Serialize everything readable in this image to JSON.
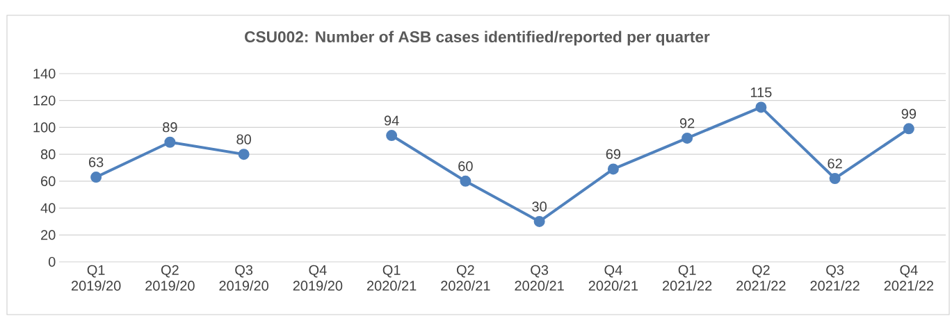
{
  "chart_data": {
    "type": "line",
    "title": "CSU002: Number of ASB cases identified/reported per quarter",
    "categories": [
      "Q1 2019/20",
      "Q2 2019/20",
      "Q3 2019/20",
      "Q4 2019/20",
      "Q1 2020/21",
      "Q2 2020/21",
      "Q3 2020/21",
      "Q4 2020/21",
      "Q1 2021/22",
      "Q2 2021/22",
      "Q3 2021/22",
      "Q4 2021/22"
    ],
    "values": [
      63,
      89,
      80,
      null,
      94,
      60,
      30,
      69,
      92,
      115,
      62,
      99
    ],
    "color": "#4f81bd",
    "ylim": [
      0,
      140
    ],
    "yticks": [
      0,
      20,
      40,
      60,
      80,
      100,
      120,
      140
    ],
    "grid": "y",
    "data_labels": true,
    "marker": "circle",
    "line_style": "solid"
  }
}
